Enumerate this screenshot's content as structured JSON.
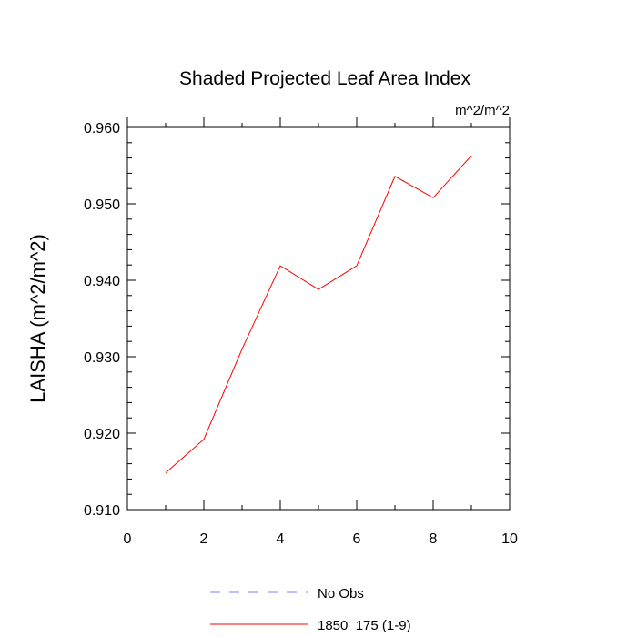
{
  "chart_data": {
    "type": "line",
    "title": "Shaded Projected Leaf Area Index",
    "units_label": "m^2/m^2",
    "xlabel": "",
    "ylabel": "LAISHA  (m^2/m^2)",
    "xlim": [
      0,
      10
    ],
    "ylim": [
      0.91,
      0.96
    ],
    "x_ticks": [
      0,
      2,
      4,
      6,
      8,
      10
    ],
    "x_tick_labels": [
      "0",
      "2",
      "4",
      "6",
      "8",
      "10"
    ],
    "y_ticks": [
      0.91,
      0.92,
      0.93,
      0.94,
      0.95,
      0.96
    ],
    "y_tick_labels": [
      "0.910",
      "0.920",
      "0.930",
      "0.940",
      "0.950",
      "0.960"
    ],
    "grid": false,
    "series": [
      {
        "name": "1850_175 (1-9)",
        "color": "#ff0000",
        "dash": "solid",
        "x": [
          1,
          2,
          3,
          4,
          5,
          6,
          7,
          8,
          9
        ],
        "values": [
          0.9148,
          0.9192,
          0.931,
          0.9419,
          0.9388,
          0.9419,
          0.9536,
          0.9508,
          0.9563
        ]
      }
    ],
    "legend": [
      {
        "label": "No Obs",
        "color": "#8080ff",
        "dash": "dashed"
      },
      {
        "label": "1850_175 (1-9)",
        "color": "#ff0000",
        "dash": "solid"
      }
    ],
    "legend_position": "bottom-center"
  }
}
